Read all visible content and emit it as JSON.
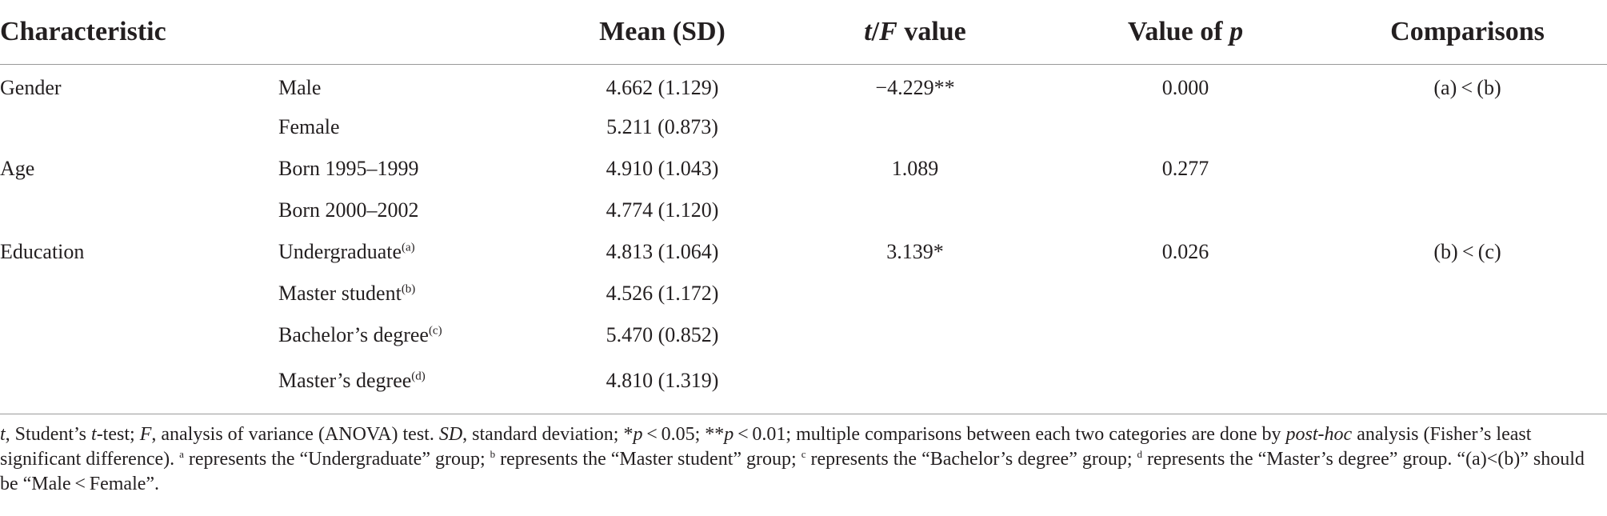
{
  "table": {
    "headers": {
      "characteristic": "Characteristic",
      "mean_sd": "Mean (SD)",
      "tf_t": "t",
      "tf_slash": "/",
      "tf_f": "F",
      "tf_value": " value",
      "p_prefix": "Value of ",
      "p_italic": "p",
      "comparisons": "Comparisons"
    },
    "rows": [
      {
        "characteristic": "Gender",
        "group": "Male",
        "group_sup": "",
        "mean_sd": "4.662 (1.129)",
        "tf": "−4.229**",
        "p": "0.000",
        "comparisons": "(a) < (b)"
      },
      {
        "characteristic": "",
        "group": "Female",
        "group_sup": "",
        "mean_sd": "5.211 (0.873)",
        "tf": "",
        "p": "",
        "comparisons": ""
      },
      {
        "characteristic": "Age",
        "group": "Born 1995–1999",
        "group_sup": "",
        "mean_sd": "4.910 (1.043)",
        "tf": "1.089",
        "p": "0.277",
        "comparisons": ""
      },
      {
        "characteristic": "",
        "group": "Born 2000–2002",
        "group_sup": "",
        "mean_sd": "4.774 (1.120)",
        "tf": "",
        "p": "",
        "comparisons": ""
      },
      {
        "characteristic": "Education",
        "group": "Undergraduate",
        "group_sup": "(a)",
        "mean_sd": "4.813 (1.064)",
        "tf": "3.139*",
        "p": "0.026",
        "comparisons": "(b) < (c)"
      },
      {
        "characteristic": "",
        "group": "Master student",
        "group_sup": "(b)",
        "mean_sd": "4.526 (1.172)",
        "tf": "",
        "p": "",
        "comparisons": ""
      },
      {
        "characteristic": "",
        "group": "Bachelor’s degree",
        "group_sup": "(c)",
        "mean_sd": "5.470 (0.852)",
        "tf": "",
        "p": "",
        "comparisons": ""
      },
      {
        "characteristic": "",
        "group": "Master’s degree",
        "group_sup": "(d)",
        "mean_sd": "4.810 (1.319)",
        "tf": "",
        "p": "",
        "comparisons": ""
      }
    ]
  },
  "footnote": {
    "t_sym": "t",
    "t_def": ", Student’s ",
    "t_test_sym": "t",
    "t_test_def": "-test; ",
    "f_sym": "F",
    "f_def": ", analysis of variance (ANOVA) test. ",
    "sd_sym": "SD",
    "sd_def": ", standard deviation; *",
    "p1_sym": "p",
    "p1_def": " < 0.05; **",
    "p2_sym": "p",
    "p2_def": " < 0.01; multiple comparisons between each two categories are done by ",
    "posthoc": "post-hoc",
    "posthoc_def": " analysis (Fisher’s least significant difference). ",
    "sup_a": "a",
    "a_def": " represents the “Undergraduate” group; ",
    "sup_b": "b",
    "b_def": " represents the “Master student” group; ",
    "sup_c": "c",
    "c_def": " represents the “Bachelor’s degree” group; ",
    "sup_d": "d",
    "d_def": " represents the “Master’s degree” group. “(a)<(b)” should be “Male < Female”."
  }
}
